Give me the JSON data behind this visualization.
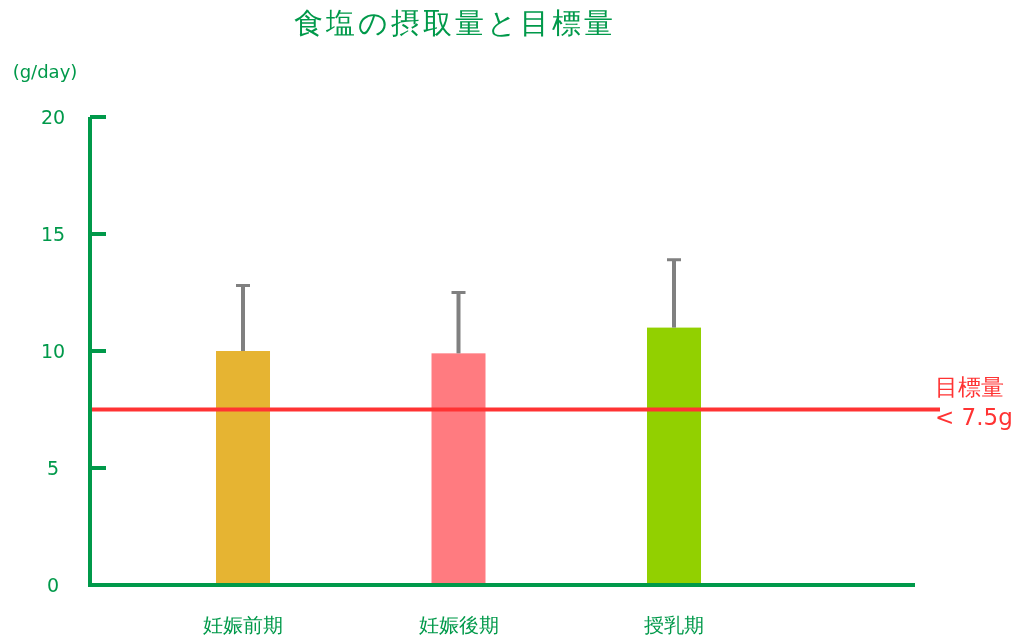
{
  "chart_data": {
    "type": "bar",
    "title": "食塩の摂取量と目標量",
    "ylabel": "(g/day)",
    "categories": [
      "妊娠前期",
      "妊娠後期",
      "授乳期"
    ],
    "values": [
      10.0,
      9.9,
      11.0
    ],
    "colors": [
      "#e6b432",
      "#ff7b80",
      "#92d000"
    ],
    "errors": [
      [
        10.0,
        12.8
      ],
      [
        9.9,
        12.5
      ],
      [
        11.0,
        13.9
      ]
    ],
    "ylim": [
      0,
      20
    ],
    "yticks": [
      0,
      5,
      10,
      15,
      20
    ],
    "grid": false,
    "ref_lines": [
      {
        "axis": "y",
        "value": 7.5,
        "label": "目標量 < 7.5g",
        "color": "#ff3333"
      }
    ]
  }
}
